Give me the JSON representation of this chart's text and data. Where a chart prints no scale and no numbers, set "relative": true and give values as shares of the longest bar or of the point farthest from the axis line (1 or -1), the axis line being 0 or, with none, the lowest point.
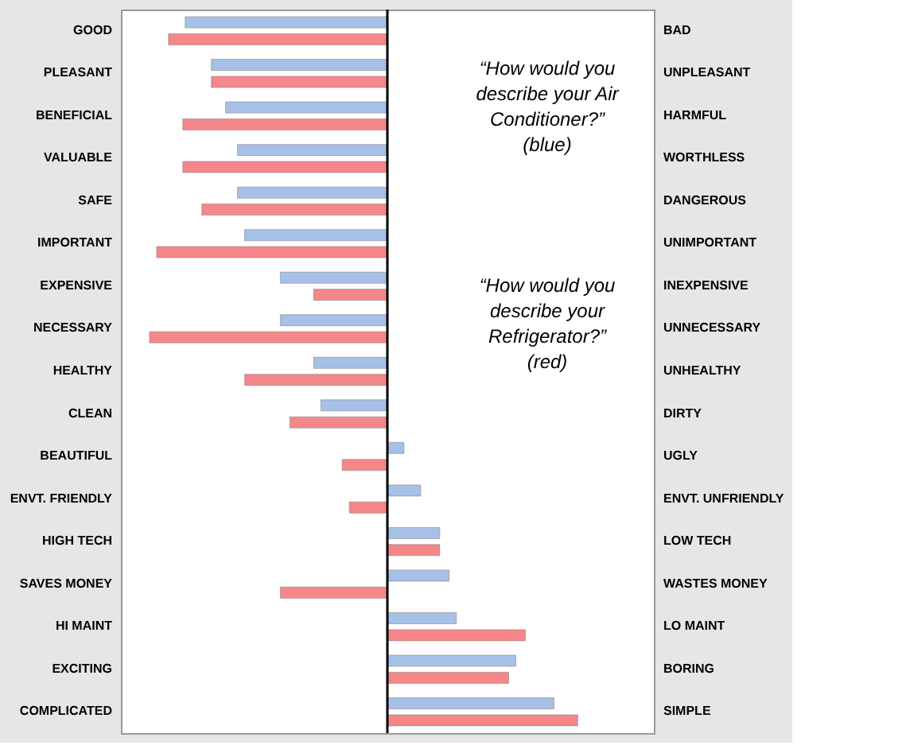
{
  "chart_data": {
    "type": "bar",
    "orientation": "horizontal",
    "relative": true,
    "legend": false,
    "categories": [
      "GOOD",
      "PLEASANT",
      "BENEFICIAL",
      "VALUABLE",
      "SAFE",
      "IMPORTANT",
      "EXPENSIVE",
      "NECESSARY",
      "HEALTHY",
      "CLEAN",
      "BEAUTIFUL",
      "ENVT. FRIENDLY",
      "HIGH TECH",
      "SAVES MONEY",
      "HI MAINT",
      "EXCITING",
      "COMPLICATED"
    ],
    "y2_categories": [
      "BAD",
      "UNPLEASANT",
      "HARMFUL",
      "WORTHLESS",
      "DANGEROUS",
      "UNIMPORTANT",
      "INEXPENSIVE",
      "UNNECESSARY",
      "UNHEALTHY",
      "DIRTY",
      "UGLY",
      "ENVT. UNFRIENDLY",
      "LOW TECH",
      "WASTES MONEY",
      "LO MAINT",
      "BORING",
      "SIMPLE"
    ],
    "series": [
      {
        "color": "#a6c0e8",
        "values": [
          -0.85,
          -0.74,
          -0.68,
          -0.63,
          -0.63,
          -0.6,
          -0.45,
          -0.45,
          -0.31,
          -0.28,
          0.07,
          0.14,
          0.22,
          0.26,
          0.29,
          0.54,
          0.7
        ]
      },
      {
        "color": "#f5868a",
        "values": [
          -0.92,
          -0.74,
          -0.86,
          -0.86,
          -0.78,
          -0.97,
          -0.31,
          -1,
          -0.6,
          -0.41,
          -0.19,
          -0.16,
          0.22,
          -0.45,
          0.58,
          0.51,
          0.8
        ]
      }
    ],
    "annotations": [
      "“How would you describe your Air Conditioner?” (blue)",
      "“How would you describe your Refrigerator?” (red)"
    ]
  }
}
